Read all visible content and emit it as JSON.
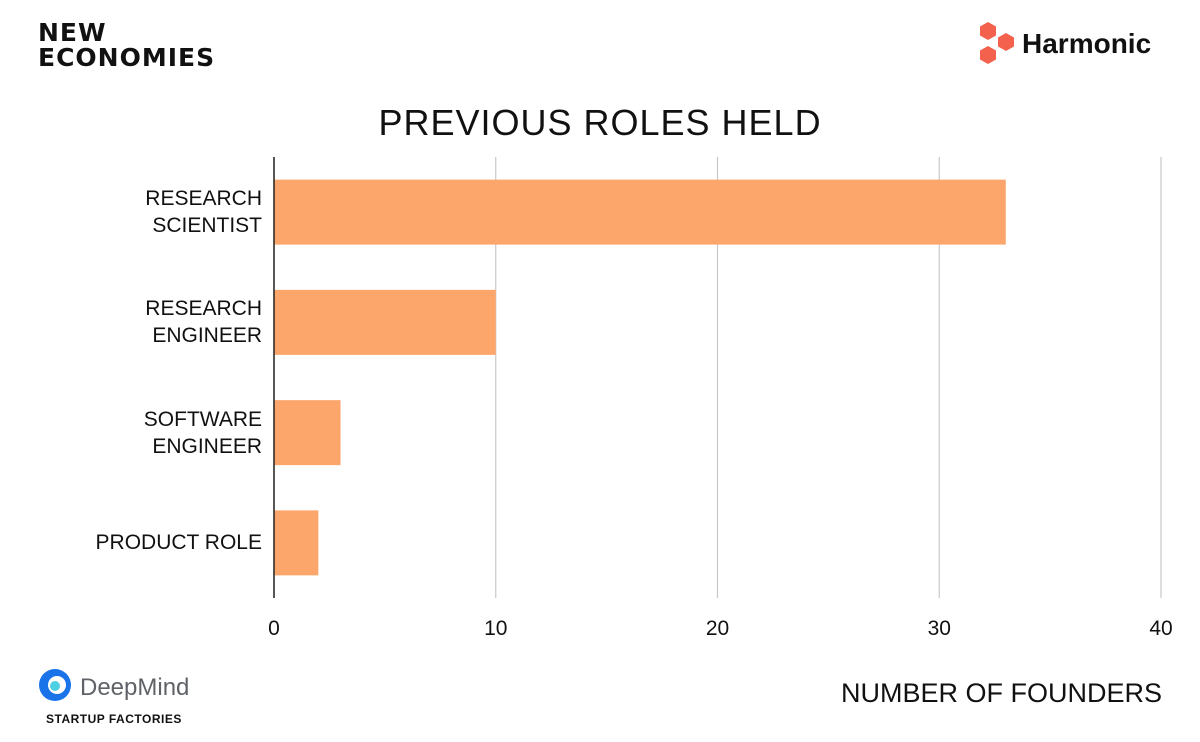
{
  "branding": {
    "top_left": "NEW\nECONOMIES",
    "top_right": "Harmonic",
    "bottom_left": "DeepMind",
    "bottom_left_sub": "STARTUP FACTORIES"
  },
  "chart_data": {
    "type": "hbar",
    "title": "PREVIOUS ROLES HELD",
    "x_label": "NUMBER OF FOUNDERS",
    "categories": [
      "RESEARCH\nSCIENTIST",
      "RESEARCH\nENGINEER",
      "SOFTWARE\nENGINEER",
      "PRODUCT ROLE"
    ],
    "values": [
      33,
      10,
      3,
      2
    ],
    "color": "#fca66c",
    "xlim": [
      0,
      40
    ],
    "xticks": [
      0,
      10,
      20,
      30,
      40
    ],
    "grid": true
  }
}
